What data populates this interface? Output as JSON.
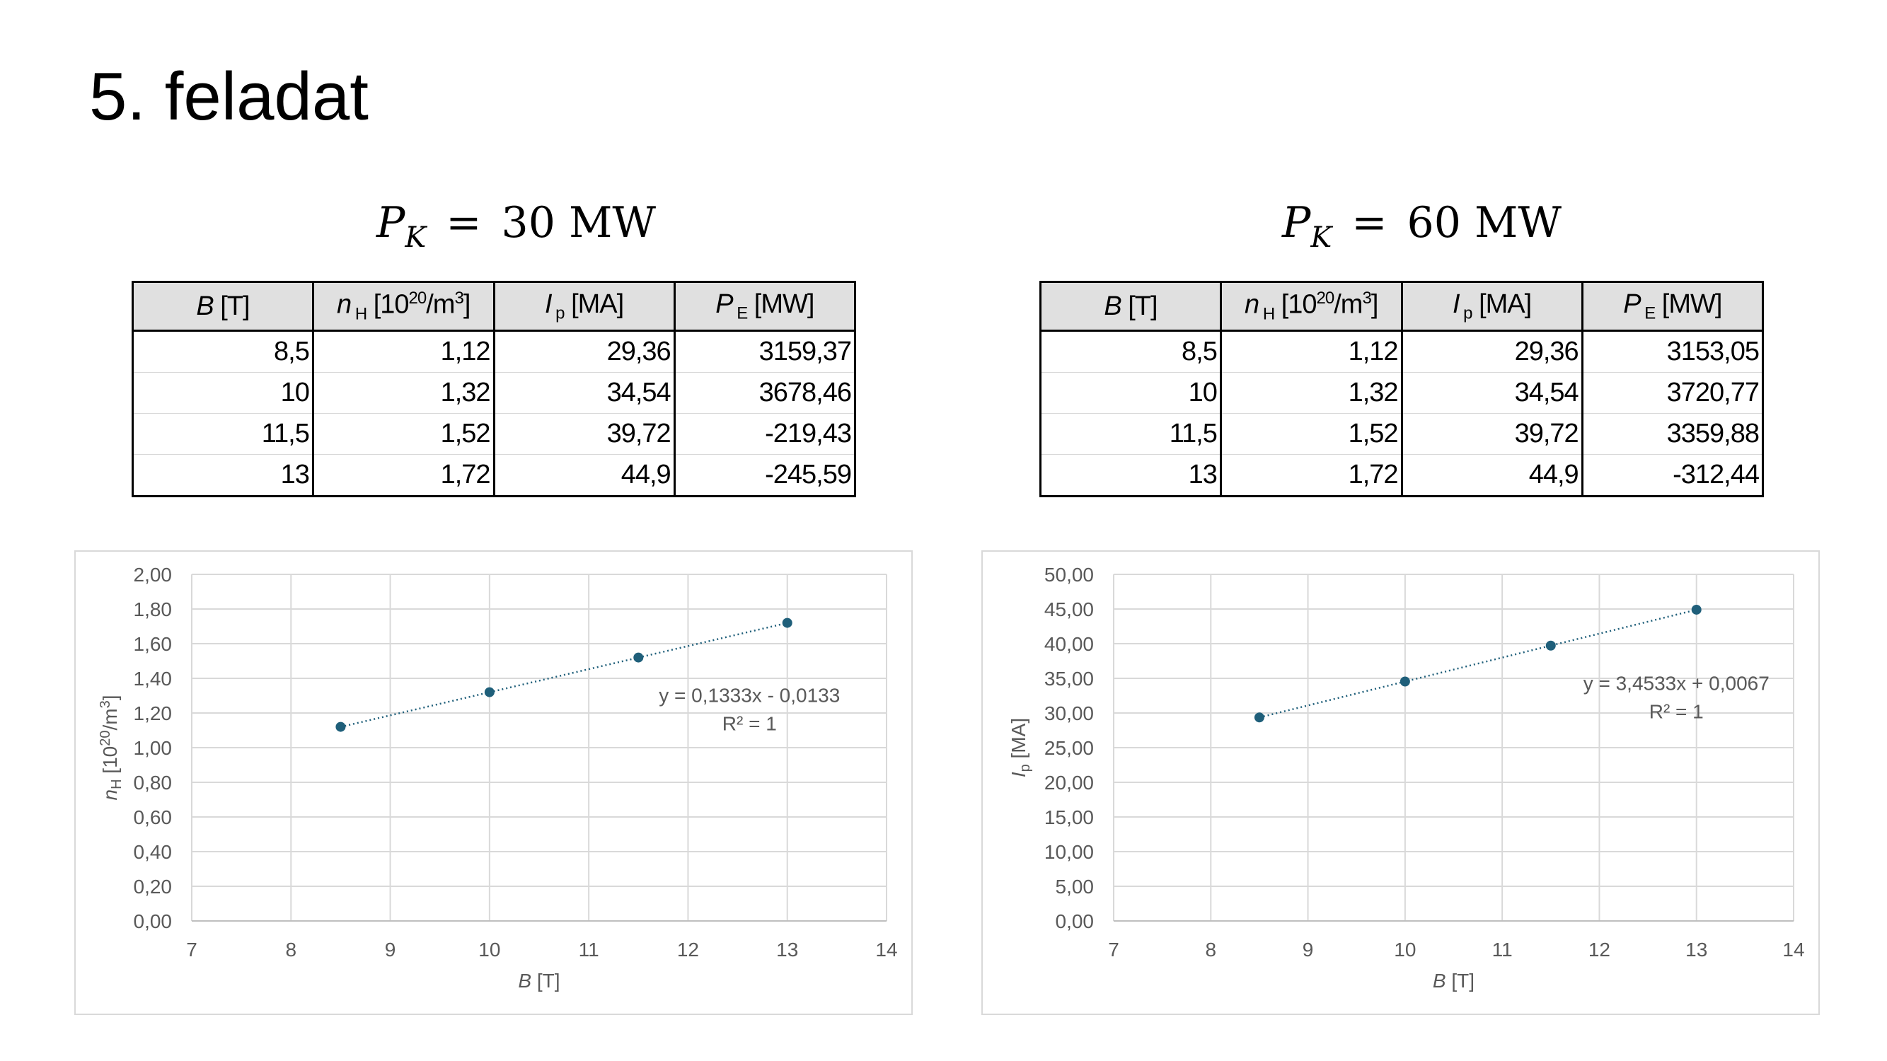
{
  "title": "5. feladat",
  "panels": [
    {
      "formula": {
        "symbol": "P",
        "sub": "K",
        "eq": "=",
        "value": "30 MW"
      },
      "table": {
        "headers": [
          {
            "sym": "B",
            "sub": "",
            "unit": " [T]"
          },
          {
            "sym": "n",
            "sub": " H",
            "unit": " [10",
            "sup": "20",
            "unit2": "/m",
            "sup2": "3",
            "unit3": "]"
          },
          {
            "sym": "I",
            "sub": " p",
            "unit": " [MA]"
          },
          {
            "sym": "P",
            "sub": " E",
            "unit": " [MW]"
          }
        ],
        "rows": [
          [
            "8,5",
            "1,12",
            "29,36",
            "3159,37"
          ],
          [
            "10",
            "1,32",
            "34,54",
            "3678,46"
          ],
          [
            "11,5",
            "1,52",
            "39,72",
            "-219,43"
          ],
          [
            "13",
            "1,72",
            "44,9",
            "-245,59"
          ]
        ]
      }
    },
    {
      "formula": {
        "symbol": "P",
        "sub": "K",
        "eq": "=",
        "value": "60 MW"
      },
      "table": {
        "headers": [
          {
            "sym": "B",
            "sub": "",
            "unit": " [T]"
          },
          {
            "sym": "n",
            "sub": " H",
            "unit": " [10",
            "sup": "20",
            "unit2": "/m",
            "sup2": "3",
            "unit3": "]"
          },
          {
            "sym": "I",
            "sub": " p",
            "unit": " [MA]"
          },
          {
            "sym": "P",
            "sub": " E",
            "unit": " [MW]"
          }
        ],
        "rows": [
          [
            "8,5",
            "1,12",
            "29,36",
            "3153,05"
          ],
          [
            "10",
            "1,32",
            "34,54",
            "3720,77"
          ],
          [
            "11,5",
            "1,52",
            "39,72",
            "3359,88"
          ],
          [
            "13",
            "1,72",
            "44,9",
            "-312,44"
          ]
        ]
      }
    }
  ],
  "chart_data": [
    {
      "type": "scatter",
      "x": [
        8.5,
        10,
        11.5,
        13
      ],
      "y": [
        1.12,
        1.32,
        1.52,
        1.72
      ],
      "xlim": [
        7,
        14
      ],
      "ylim": [
        0,
        2
      ],
      "xticks": [
        "7",
        "8",
        "9",
        "10",
        "11",
        "12",
        "13",
        "14"
      ],
      "yticks": [
        "0,00",
        "0,20",
        "0,40",
        "0,60",
        "0,80",
        "1,00",
        "1,20",
        "1,40",
        "1,60",
        "1,80",
        "2,00"
      ],
      "xlabel": {
        "sym": "B",
        "unit": " [T]"
      },
      "ylabel": {
        "sym": "n",
        "sub": "H",
        "unit": " [10",
        "sup": "20",
        "unit2": "/m",
        "sup2": "3",
        "unit3": "]"
      },
      "trendline": {
        "type": "linear",
        "slope": 0.1333,
        "intercept": -0.0133,
        "style": "dotted"
      },
      "annotation": {
        "line1": "y = 0,1333x - 0,0133",
        "line2": "R² = 1"
      },
      "grid": true,
      "colors": {
        "marker": "#1f5f7a",
        "grid": "#d9d9d9",
        "axis": "#bfbfbf"
      }
    },
    {
      "type": "scatter",
      "x": [
        8.5,
        10,
        11.5,
        13
      ],
      "y": [
        29.36,
        34.54,
        39.72,
        44.9
      ],
      "xlim": [
        7,
        14
      ],
      "ylim": [
        0,
        50
      ],
      "xticks": [
        "7",
        "8",
        "9",
        "10",
        "11",
        "12",
        "13",
        "14"
      ],
      "yticks": [
        "0,00",
        "5,00",
        "10,00",
        "15,00",
        "20,00",
        "25,00",
        "30,00",
        "35,00",
        "40,00",
        "45,00",
        "50,00"
      ],
      "xlabel": {
        "sym": "B",
        "unit": " [T]"
      },
      "ylabel": {
        "sym": "I",
        "sub": "p",
        "unit": " [MA]"
      },
      "trendline": {
        "type": "linear",
        "slope": 3.4533,
        "intercept": 0.0067,
        "style": "dotted"
      },
      "annotation": {
        "line1": "y = 3,4533x + 0,0067",
        "line2": "R² = 1"
      },
      "grid": true,
      "colors": {
        "marker": "#1f5f7a",
        "grid": "#d9d9d9",
        "axis": "#bfbfbf"
      }
    }
  ]
}
